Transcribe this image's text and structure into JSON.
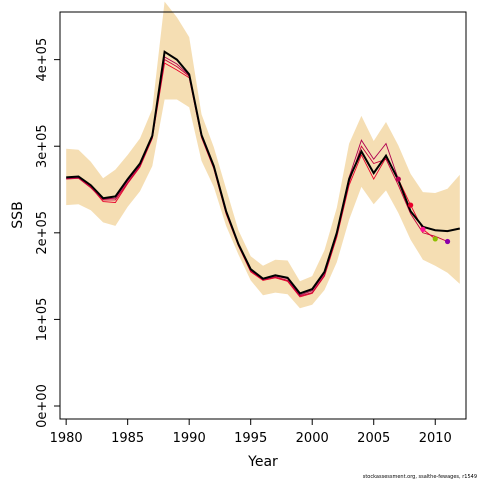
{
  "chart_data": {
    "type": "line",
    "title": "",
    "xlabel": "Year",
    "ylabel": "SSB",
    "xlim": [
      1979.5,
      2012.5
    ],
    "ylim": [
      -15000,
      455000
    ],
    "x_ticks": [
      1980,
      1985,
      1990,
      1995,
      2000,
      2005,
      2010
    ],
    "x_tick_labels": [
      "1980",
      "1985",
      "1990",
      "1995",
      "2000",
      "2005",
      "2010"
    ],
    "y_ticks": [
      0,
      100000,
      200000,
      300000,
      400000
    ],
    "y_tick_labels": [
      "0e+00",
      "1e+05",
      "2e+05",
      "3e+05",
      "4e+05"
    ],
    "grid": false,
    "footnote": "stockassessment.org, ssalthe-fewages, r1549",
    "colors": {
      "band": "#f5deb3",
      "main": "#000000",
      "retro_1": "#e8002a",
      "retro_2": "#c8003c",
      "retro_3": "#b00050"
    },
    "series": [
      {
        "role": "confidence-band",
        "x": [
          1980,
          1981,
          1982,
          1983,
          1984,
          1985,
          1986,
          1987,
          1988,
          1989,
          1990,
          1991,
          1992,
          1993,
          1994,
          1995,
          1996,
          1997,
          1998,
          1999,
          2000,
          2001,
          2002,
          2003,
          2004,
          2005,
          2006,
          2007,
          2008,
          2009,
          2010,
          2011,
          2012
        ],
        "lower": [
          232000,
          233000,
          226000,
          212000,
          208000,
          230000,
          248000,
          277000,
          354000,
          354000,
          345000,
          283000,
          253000,
          208000,
          175000,
          145000,
          128000,
          131000,
          129000,
          113000,
          117000,
          134000,
          166000,
          215000,
          253000,
          233000,
          249000,
          223000,
          192000,
          169000,
          162000,
          154000,
          141000
        ],
        "upper": [
          297000,
          296000,
          282000,
          263000,
          273000,
          290000,
          309000,
          343000,
          467000,
          449000,
          426000,
          337000,
          299000,
          251000,
          203000,
          173000,
          162000,
          169000,
          168000,
          144000,
          150000,
          180000,
          229000,
          303000,
          335000,
          306000,
          328000,
          301000,
          268000,
          247000,
          246000,
          251000,
          267000
        ]
      },
      {
        "role": "estimate",
        "x": [
          1980,
          1981,
          1982,
          1983,
          1984,
          1985,
          1986,
          1987,
          1988,
          1989,
          1990,
          1991,
          1992,
          1993,
          1994,
          1995,
          1996,
          1997,
          1998,
          1999,
          2000,
          2001,
          2002,
          2003,
          2004,
          2005,
          2006,
          2007,
          2008,
          2009,
          2010,
          2011,
          2012
        ],
        "values": [
          264000,
          265000,
          255000,
          240000,
          242000,
          262000,
          280000,
          312000,
          409000,
          400000,
          383000,
          313000,
          277000,
          225000,
          187000,
          158000,
          147000,
          151000,
          148000,
          130000,
          135000,
          155000,
          200000,
          262000,
          294000,
          269000,
          289000,
          261000,
          225000,
          207000,
          203000,
          202000,
          205000
        ]
      },
      {
        "role": "retrospective",
        "x": [
          1980,
          1981,
          1982,
          1983,
          1984,
          1985,
          1986,
          1987,
          1988,
          1989,
          1990,
          1991,
          1992,
          1993,
          1994,
          1995,
          1996,
          1997,
          1998,
          1999,
          2000,
          2001,
          2002,
          2003,
          2004,
          2005,
          2006,
          2007,
          2008,
          2009,
          2010
        ],
        "values": [
          263000,
          264000,
          253000,
          236000,
          235000,
          257000,
          276000,
          309000,
          396000,
          388000,
          379000,
          310000,
          274000,
          222000,
          185000,
          155000,
          145000,
          148000,
          144000,
          126000,
          130000,
          150000,
          195000,
          255000,
          290000,
          262000,
          287000,
          262000,
          232000,
          204000,
          193000
        ]
      },
      {
        "role": "retrospective",
        "x": [
          1980,
          1981,
          1982,
          1983,
          1984,
          1985,
          1986,
          1987,
          1988,
          1989,
          1990,
          1991,
          1992,
          1993,
          1994,
          1995,
          1996,
          1997,
          1998,
          1999,
          2000,
          2001,
          2002,
          2003,
          2004,
          2005,
          2006,
          2007,
          2008,
          2009,
          2010,
          2011
        ],
        "values": [
          262000,
          263000,
          252000,
          238000,
          238000,
          258000,
          277000,
          310000,
          400000,
          392000,
          381000,
          311000,
          275000,
          223000,
          186000,
          156000,
          146000,
          149000,
          145000,
          127000,
          131000,
          151000,
          197000,
          258000,
          300000,
          280000,
          285000,
          255000,
          222000,
          200000,
          196000,
          190000
        ]
      },
      {
        "role": "retrospective",
        "x": [
          1980,
          1981,
          1982,
          1983,
          1984,
          1985,
          1986,
          1987,
          1988,
          1989,
          1990,
          1991,
          1992,
          1993,
          1994,
          1995,
          1996,
          1997,
          1998,
          1999,
          2000,
          2001,
          2002,
          2003,
          2004,
          2005,
          2006,
          2007
        ],
        "values": [
          263000,
          264000,
          254000,
          239000,
          240000,
          260000,
          278000,
          311000,
          403000,
          395000,
          382000,
          312000,
          276000,
          224000,
          186000,
          157000,
          146000,
          150000,
          147000,
          128000,
          133000,
          153000,
          199000,
          264000,
          307000,
          285000,
          303000,
          262000
        ]
      }
    ],
    "endpoints": [
      {
        "x": 2007,
        "y": 262000,
        "color": "#b00050"
      },
      {
        "x": 2008,
        "y": 232000,
        "color": "#e8002a"
      },
      {
        "x": 2009,
        "y": 204000,
        "color": "#ff1493"
      },
      {
        "x": 2010,
        "y": 193000,
        "color": "#8fbf00"
      },
      {
        "x": 2011,
        "y": 190000,
        "color": "#8b00aa"
      }
    ]
  }
}
